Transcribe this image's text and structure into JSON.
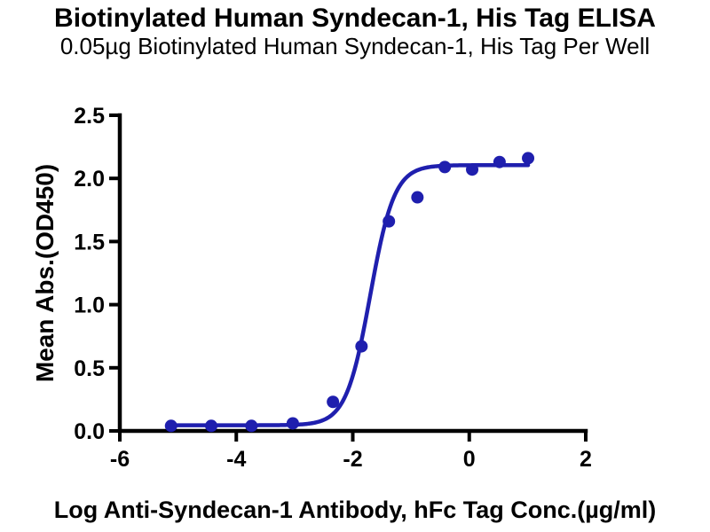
{
  "chart": {
    "title": "Biotinylated Human Syndecan-1, His Tag ELISA",
    "subtitle": "0.05µg Biotinylated Human Syndecan-1, His Tag Per Well"
  },
  "chart_data": {
    "type": "scatter",
    "title": "Biotinylated Human Syndecan-1, His Tag ELISA",
    "subtitle": "0.05µg Biotinylated Human Syndecan-1, His Tag Per Well",
    "xlabel": "Log Anti-Syndecan-1 Antibody, hFc Tag Conc.(µg/ml)",
    "ylabel": "Mean Abs.(OD450)",
    "x": [
      -5.12,
      -4.43,
      -3.74,
      -3.03,
      -2.34,
      -1.85,
      -1.38,
      -0.89,
      -0.42,
      0.05,
      0.52,
      1.01
    ],
    "y": [
      0.04,
      0.04,
      0.04,
      0.06,
      0.23,
      0.67,
      1.66,
      1.85,
      2.09,
      2.07,
      2.13,
      2.16
    ],
    "xlim": [
      -6,
      2
    ],
    "ylim": [
      0,
      2.5
    ],
    "xticks": [
      {
        "v": -6,
        "label": "-6"
      },
      {
        "v": -4,
        "label": "-4"
      },
      {
        "v": -2,
        "label": "-2"
      },
      {
        "v": 0,
        "label": "0"
      },
      {
        "v": 2,
        "label": "2"
      }
    ],
    "yticks": [
      {
        "v": 0,
        "label": "0.0"
      },
      {
        "v": 0.5,
        "label": "0.5"
      },
      {
        "v": 1,
        "label": "1.0"
      },
      {
        "v": 1.5,
        "label": "1.5"
      },
      {
        "v": 2,
        "label": "2.0"
      },
      {
        "v": 2.5,
        "label": "2.5"
      }
    ],
    "fit_curve": {
      "model": "4PL",
      "bottom": 0.045,
      "top": 2.105,
      "log_ec50": -1.7,
      "hill": 2.1,
      "x_range": [
        -5.12,
        1.01
      ]
    },
    "grid": false,
    "legend": "none",
    "colors": {
      "series": "#1f1fae",
      "axis": "#000000",
      "text": "#000000",
      "background": "#ffffff"
    },
    "marker_radius": 7,
    "curve_width": 4.5,
    "axis_width": 4.5
  }
}
